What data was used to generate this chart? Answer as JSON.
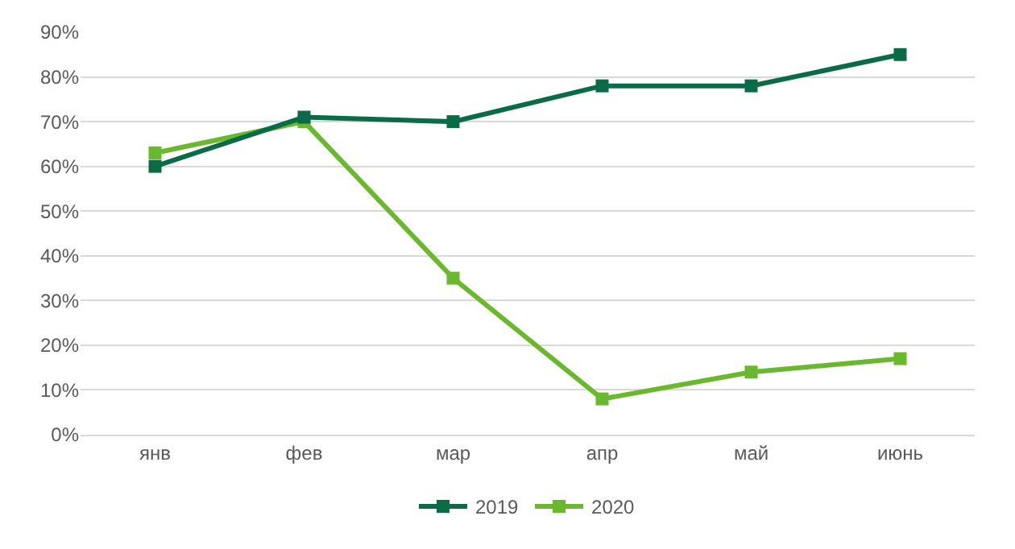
{
  "chart_data": {
    "type": "line",
    "categories": [
      "янв",
      "фев",
      "мар",
      "апр",
      "май",
      "июнь"
    ],
    "series": [
      {
        "name": "2019",
        "color": "#0a6b47",
        "values": [
          60,
          71,
          70,
          78,
          78,
          85
        ]
      },
      {
        "name": "2020",
        "color": "#6ab82e",
        "values": [
          63,
          70,
          35,
          8,
          14,
          17
        ]
      }
    ],
    "ylim": [
      0,
      90
    ],
    "yticks": [
      {
        "value": 0,
        "label": "0%"
      },
      {
        "value": 10,
        "label": "10%"
      },
      {
        "value": 20,
        "label": "20%"
      },
      {
        "value": 30,
        "label": "30%"
      },
      {
        "value": 40,
        "label": "40%"
      },
      {
        "value": 50,
        "label": "50%"
      },
      {
        "value": 60,
        "label": "60%"
      },
      {
        "value": 70,
        "label": "70%"
      },
      {
        "value": 80,
        "label": "80%"
      },
      {
        "value": 90,
        "label": "90%"
      }
    ],
    "grid": "y",
    "legend": "bottom",
    "marker": "square",
    "line_style": "solid"
  }
}
